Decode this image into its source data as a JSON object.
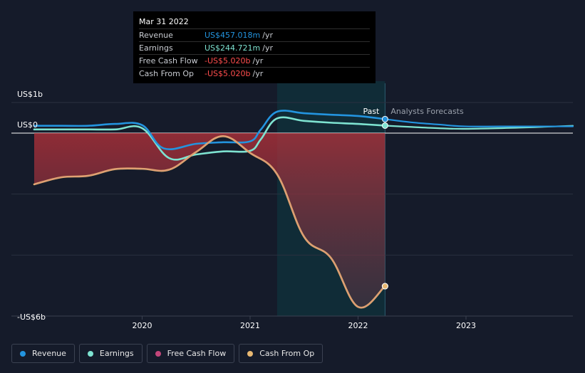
{
  "colors": {
    "revenue": "#2394df",
    "earnings": "#7ee3d1",
    "free_cash_flow": "#c2467a",
    "cash_from_op": "#e8b872",
    "negative_fill": "#b8313a",
    "forecast_band": "#0f2f3a",
    "grid": "#2a3040",
    "axis_text": "#ffffff"
  },
  "tooltip": {
    "date": "Mar 31 2022",
    "rows": [
      {
        "label": "Revenue",
        "value": "US$457.018m",
        "unit": "/yr",
        "color": "#2394df"
      },
      {
        "label": "Earnings",
        "value": "US$244.721m",
        "unit": "/yr",
        "color": "#7ee3d1"
      },
      {
        "label": "Free Cash Flow",
        "value": "-US$5.020b",
        "unit": "/yr",
        "color": "#ff4d4d"
      },
      {
        "label": "Cash From Op",
        "value": "-US$5.020b",
        "unit": "/yr",
        "color": "#ff4d4d"
      }
    ]
  },
  "chart_data": {
    "type": "line",
    "title": "",
    "xlabel": "",
    "ylabel": "",
    "y_unit": "US$ billions",
    "xlim": [
      2019.0,
      2023.99
    ],
    "ylim": [
      -6.0,
      1.0
    ],
    "x_ticks": [
      2020,
      2021,
      2022,
      2023
    ],
    "x_tick_labels": [
      "2020",
      "2021",
      "2022",
      "2023"
    ],
    "y_tick_labels": [
      {
        "value": 1.0,
        "label": "US$1b"
      },
      {
        "value": 0.0,
        "label": "US$0"
      },
      {
        "value": -6.0,
        "label": "-US$6b"
      }
    ],
    "grid_values": [
      1.0,
      0.0,
      -2.0,
      -4.0,
      -6.0
    ],
    "past_label": "Past",
    "forecast_label": "Analysts Forecasts",
    "past_end_x": 2022.25,
    "forecast_band_start_x": 2021.25,
    "series": [
      {
        "name": "Revenue",
        "key": "revenue",
        "points": [
          [
            2019.0,
            0.24
          ],
          [
            2019.25,
            0.24
          ],
          [
            2019.5,
            0.24
          ],
          [
            2019.75,
            0.3
          ],
          [
            2020.0,
            0.26
          ],
          [
            2020.2,
            -0.5
          ],
          [
            2020.5,
            -0.35
          ],
          [
            2020.75,
            -0.3
          ],
          [
            2021.0,
            -0.27
          ],
          [
            2021.1,
            0.12
          ],
          [
            2021.25,
            0.7
          ],
          [
            2021.5,
            0.65
          ],
          [
            2021.75,
            0.6
          ],
          [
            2022.0,
            0.56
          ],
          [
            2022.25,
            0.457
          ]
        ],
        "forecast": [
          [
            2022.25,
            0.457
          ],
          [
            2022.5,
            0.35
          ],
          [
            2022.75,
            0.28
          ],
          [
            2023.0,
            0.22
          ],
          [
            2023.5,
            0.22
          ],
          [
            2023.99,
            0.22
          ]
        ]
      },
      {
        "name": "Earnings",
        "key": "earnings",
        "points": [
          [
            2019.0,
            0.12
          ],
          [
            2019.25,
            0.12
          ],
          [
            2019.5,
            0.12
          ],
          [
            2019.75,
            0.12
          ],
          [
            2020.0,
            0.16
          ],
          [
            2020.25,
            -0.82
          ],
          [
            2020.5,
            -0.7
          ],
          [
            2020.75,
            -0.6
          ],
          [
            2021.0,
            -0.58
          ],
          [
            2021.1,
            -0.2
          ],
          [
            2021.25,
            0.48
          ],
          [
            2021.5,
            0.4
          ],
          [
            2021.75,
            0.34
          ],
          [
            2022.0,
            0.3
          ],
          [
            2022.25,
            0.245
          ]
        ],
        "forecast": [
          [
            2022.25,
            0.245
          ],
          [
            2022.5,
            0.2
          ],
          [
            2022.75,
            0.16
          ],
          [
            2023.0,
            0.14
          ],
          [
            2023.5,
            0.18
          ],
          [
            2023.99,
            0.24
          ]
        ]
      },
      {
        "name": "Free Cash Flow",
        "key": "free_cash_flow",
        "points": [
          [
            2019.0,
            -1.68
          ],
          [
            2019.25,
            -1.45
          ],
          [
            2019.5,
            -1.4
          ],
          [
            2019.75,
            -1.18
          ],
          [
            2020.0,
            -1.17
          ],
          [
            2020.25,
            -1.2
          ],
          [
            2020.5,
            -0.62
          ],
          [
            2020.75,
            -0.1
          ],
          [
            2021.0,
            -0.65
          ],
          [
            2021.25,
            -1.35
          ],
          [
            2021.5,
            -3.4
          ],
          [
            2021.75,
            -4.1
          ],
          [
            2022.0,
            -5.7
          ],
          [
            2022.25,
            -5.02
          ]
        ]
      },
      {
        "name": "Cash From Op",
        "key": "cash_from_op",
        "points": [
          [
            2019.0,
            -1.68
          ],
          [
            2019.25,
            -1.45
          ],
          [
            2019.5,
            -1.4
          ],
          [
            2019.75,
            -1.18
          ],
          [
            2020.0,
            -1.17
          ],
          [
            2020.25,
            -1.2
          ],
          [
            2020.5,
            -0.62
          ],
          [
            2020.75,
            -0.1
          ],
          [
            2021.0,
            -0.65
          ],
          [
            2021.25,
            -1.35
          ],
          [
            2021.5,
            -3.4
          ],
          [
            2021.75,
            -4.1
          ],
          [
            2022.0,
            -5.7
          ],
          [
            2022.25,
            -5.02
          ]
        ]
      }
    ]
  },
  "legend": [
    {
      "label": "Revenue",
      "color": "#2394df"
    },
    {
      "label": "Earnings",
      "color": "#7ee3d1"
    },
    {
      "label": "Free Cash Flow",
      "color": "#c2467a"
    },
    {
      "label": "Cash From Op",
      "color": "#e8b872"
    }
  ]
}
